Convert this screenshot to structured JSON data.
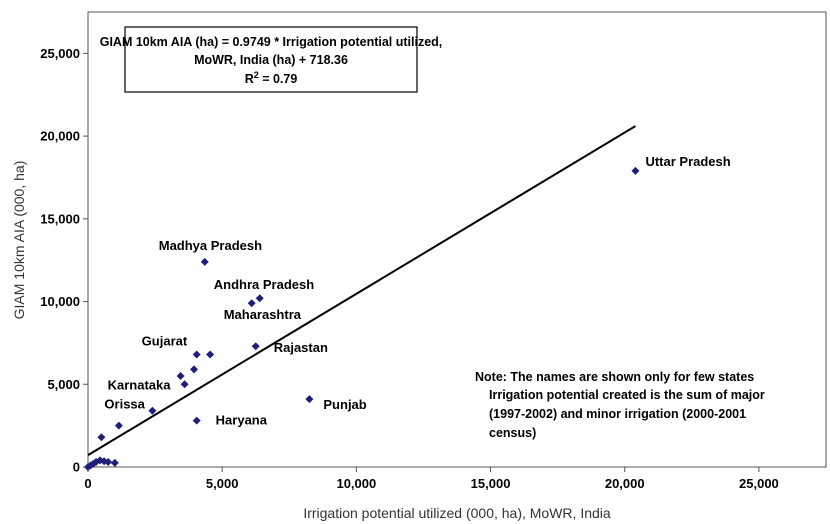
{
  "chart_data": {
    "type": "scatter",
    "xlabel": "Irrigation potential utilized (000, ha), MoWR, India",
    "ylabel": "GIAM 10km AIA (000, ha)",
    "xlim": [
      0,
      27500
    ],
    "ylim": [
      0,
      27500
    ],
    "x_ticks": [
      "0",
      "5,000",
      "10,000",
      "15,000",
      "20,000",
      "25,000"
    ],
    "y_ticks": [
      "0",
      "5,000",
      "10,000",
      "15,000",
      "20,000",
      "25,000"
    ],
    "grid": false,
    "marker_color": "#1f1f7a",
    "line_color": "#000000",
    "points": [
      {
        "x": 0,
        "y": 0
      },
      {
        "x": 100,
        "y": 100
      },
      {
        "x": 200,
        "y": 200
      },
      {
        "x": 300,
        "y": 300
      },
      {
        "x": 450,
        "y": 400
      },
      {
        "x": 600,
        "y": 350
      },
      {
        "x": 750,
        "y": 300
      },
      {
        "x": 1000,
        "y": 250
      },
      {
        "x": 500,
        "y": 1800
      },
      {
        "x": 1150,
        "y": 2500
      },
      {
        "x": 2400,
        "y": 3400
      },
      {
        "x": 3600,
        "y": 5000
      },
      {
        "x": 3450,
        "y": 5500
      },
      {
        "x": 3950,
        "y": 5900
      },
      {
        "x": 4050,
        "y": 6800
      },
      {
        "x": 4550,
        "y": 6800
      },
      {
        "x": 4050,
        "y": 2800
      },
      {
        "x": 6250,
        "y": 7300
      },
      {
        "x": 8250,
        "y": 4100
      },
      {
        "x": 6100,
        "y": 9900
      },
      {
        "x": 6400,
        "y": 10200
      },
      {
        "x": 4350,
        "y": 12400
      },
      {
        "x": 20400,
        "y": 17900
      }
    ],
    "trendline": {
      "slope": 0.9749,
      "intercept": 718.36,
      "x_range": [
        0,
        20400
      ]
    },
    "point_labels": [
      {
        "text": "Uttar Pradesh",
        "x": 20400,
        "y": 17900
      },
      {
        "text": "Madhya Pradesh",
        "x": 4350,
        "y": 12400
      },
      {
        "text": "Andhra Pradesh",
        "x": 6400,
        "y": 10200
      },
      {
        "text": "Maharashtra",
        "x": 6100,
        "y": 9900
      },
      {
        "text": "Gujarat",
        "x": 4050,
        "y": 6800
      },
      {
        "text": "Rajastan",
        "x": 6250,
        "y": 7300
      },
      {
        "text": "Karnataka",
        "x": 3600,
        "y": 5000
      },
      {
        "text": "Orissa",
        "x": 2400,
        "y": 3400
      },
      {
        "text": "Haryana",
        "x": 4050,
        "y": 2800
      },
      {
        "text": "Punjab",
        "x": 8250,
        "y": 4100
      }
    ],
    "equation": {
      "line1": "GIAM 10km AIA (ha) = 0.9749 * Irrigation potential utilized,",
      "line2": "MoWR, India (ha) + 718.36",
      "line3_prefix": "R",
      "line3_sup": "2",
      "line3_suffix": " = 0.79"
    },
    "note": {
      "line1": "Note: The names are shown only for few states",
      "line2": "Irrigation potential created is the sum of major",
      "line3": "(1997-2002) and minor irrigation (2000-2001",
      "line4": "census)"
    }
  }
}
